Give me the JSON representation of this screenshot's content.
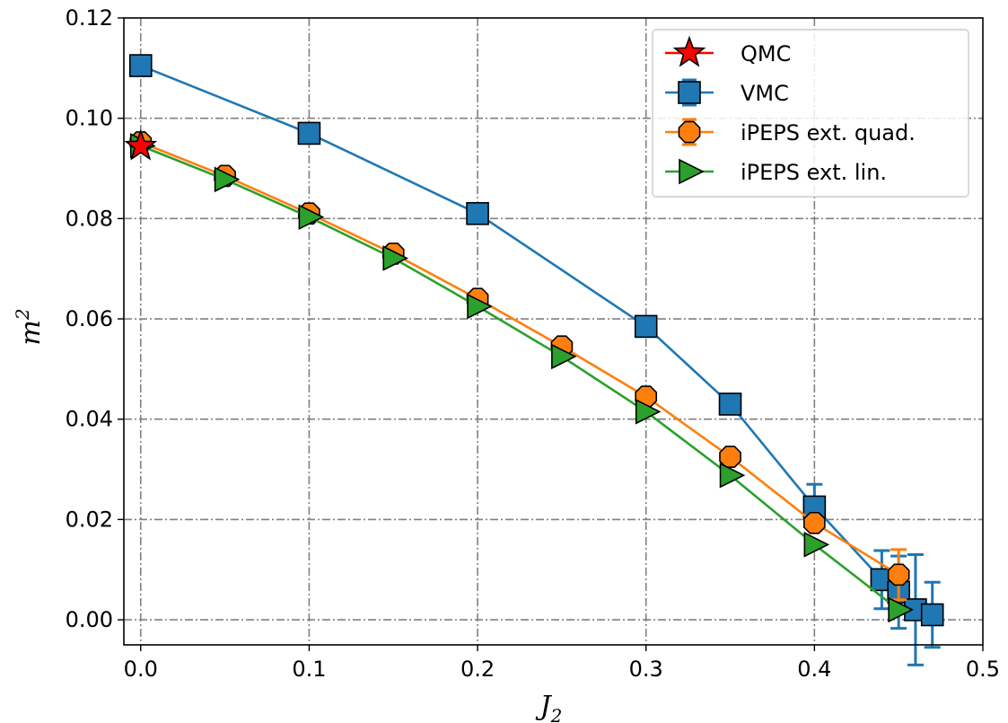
{
  "chart_data": {
    "type": "scatter",
    "title": "",
    "xlabel_base": "J",
    "xlabel_sub": "2",
    "ylabel_base": "m",
    "ylabel_sup": "2",
    "xlim": [
      -0.01,
      0.5
    ],
    "ylim": [
      -0.005,
      0.12
    ],
    "xticks": [
      0.0,
      0.1,
      0.2,
      0.3,
      0.4,
      0.5
    ],
    "yticks": [
      0.0,
      0.02,
      0.04,
      0.06,
      0.08,
      0.1,
      0.12
    ],
    "xtick_labels": [
      "0.0",
      "0.1",
      "0.2",
      "0.3",
      "0.4",
      "0.5"
    ],
    "ytick_labels": [
      "0.00",
      "0.02",
      "0.04",
      "0.06",
      "0.08",
      "0.10",
      "0.12"
    ],
    "grid": true,
    "legend_position": "top-right",
    "series": [
      {
        "name": "QMC",
        "color": "#ff0000",
        "marker": "star",
        "line": false,
        "x": [
          0.0
        ],
        "y": [
          0.0944
        ],
        "err": [
          0
        ]
      },
      {
        "name": "VMC",
        "color": "#1f77b4",
        "marker": "square",
        "line": true,
        "x": [
          0.0,
          0.1,
          0.2,
          0.3,
          0.35,
          0.4,
          0.44,
          0.45,
          0.46,
          0.47
        ],
        "y": [
          0.1105,
          0.097,
          0.081,
          0.0585,
          0.043,
          0.0225,
          0.008,
          0.0055,
          0.002,
          0.001
        ],
        "err": [
          0,
          0,
          0,
          0,
          0,
          0.0045,
          0.0058,
          0.0072,
          0.011,
          0.0065
        ]
      },
      {
        "name": "iPEPS ext. quad.",
        "color": "#ff7f0e",
        "marker": "octagon",
        "line": true,
        "x": [
          0.0,
          0.05,
          0.1,
          0.15,
          0.2,
          0.25,
          0.3,
          0.35,
          0.4,
          0.45
        ],
        "y": [
          0.0952,
          0.0885,
          0.081,
          0.073,
          0.064,
          0.0545,
          0.0445,
          0.0325,
          0.0193,
          0.009
        ],
        "err": [
          0,
          0,
          0,
          0,
          0,
          0,
          0,
          0,
          0,
          0.005
        ]
      },
      {
        "name": "iPEPS ext. lin.",
        "color": "#2ca02c",
        "marker": "triangle-right",
        "line": true,
        "x": [
          0.0,
          0.05,
          0.1,
          0.15,
          0.2,
          0.25,
          0.3,
          0.35,
          0.4,
          0.45
        ],
        "y": [
          0.0945,
          0.0878,
          0.0803,
          0.0721,
          0.0625,
          0.0525,
          0.0415,
          0.0288,
          0.015,
          0.002
        ],
        "err": [
          0,
          0,
          0,
          0,
          0,
          0,
          0,
          0,
          0,
          0
        ]
      }
    ]
  }
}
